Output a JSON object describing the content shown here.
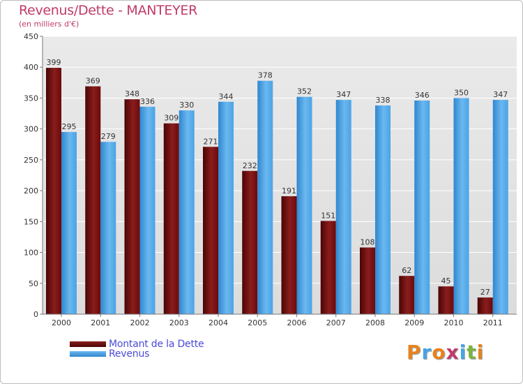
{
  "header": {
    "title": "Revenus/Dette - MANTEYER",
    "subtitle": "(en milliers d'€)"
  },
  "legend": {
    "items": [
      {
        "label": "Montant de la Dette",
        "color": "#6b0a0a"
      },
      {
        "label": "Revenus",
        "color": "#4aa3e6"
      }
    ]
  },
  "logo": {
    "text": "Proxiti",
    "colors": [
      "#e8821e",
      "#4aa3e6",
      "#e8821e",
      "#c03a6a",
      "#4aa3e6",
      "#7cb342",
      "#e8821e"
    ]
  },
  "chart_data": {
    "type": "bar",
    "title": "Revenus/Dette - MANTEYER",
    "ylabel": "(en milliers d'€)",
    "ylim": [
      0,
      450
    ],
    "yticks": [
      0,
      50,
      100,
      150,
      200,
      250,
      300,
      350,
      400,
      450
    ],
    "categories": [
      "2000",
      "2001",
      "2002",
      "2003",
      "2004",
      "2005",
      "2006",
      "2007",
      "2008",
      "2009",
      "2010",
      "2011"
    ],
    "series": [
      {
        "name": "Montant de la Dette",
        "color": "#6b0a0a",
        "values": [
          399,
          369,
          348,
          309,
          271,
          232,
          191,
          151,
          108,
          62,
          45,
          27
        ]
      },
      {
        "name": "Revenus",
        "color": "#4aa3e6",
        "values": [
          295,
          279,
          336,
          330,
          344,
          378,
          352,
          347,
          338,
          346,
          350,
          347
        ]
      }
    ],
    "grid": true,
    "legend_position": "bottom-left"
  }
}
